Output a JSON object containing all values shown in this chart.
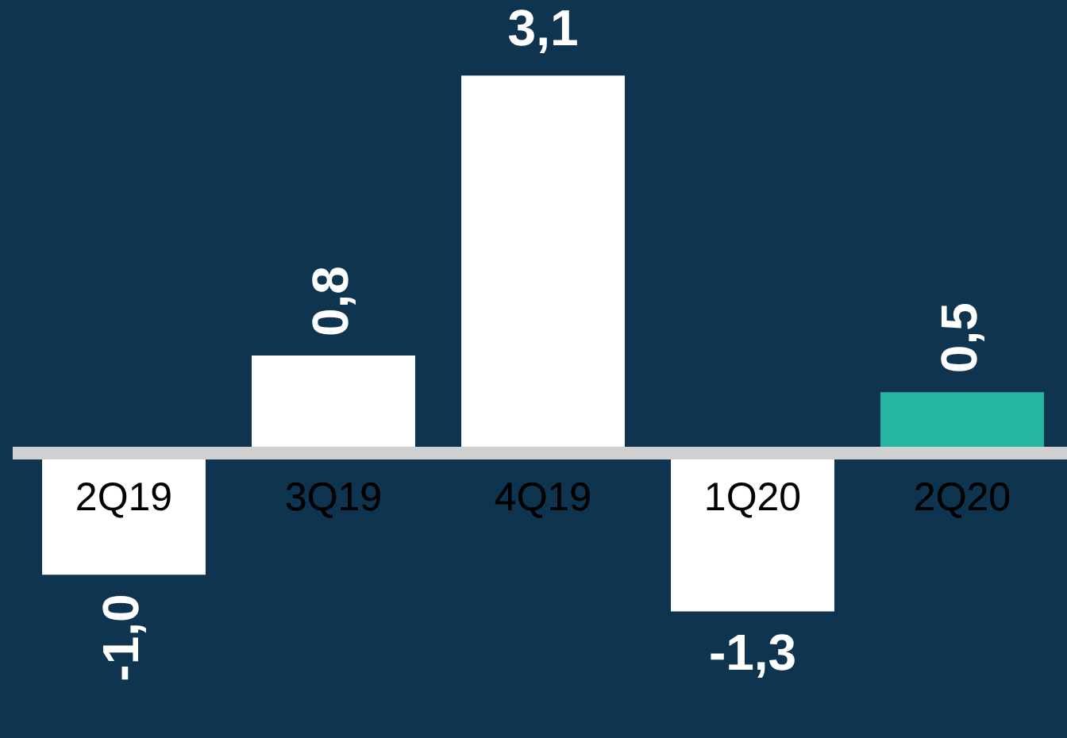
{
  "chart_data": {
    "type": "bar",
    "categories": [
      "2Q19",
      "3Q19",
      "4Q19",
      "1Q20",
      "2Q20"
    ],
    "values": [
      -1.0,
      0.8,
      3.1,
      -1.3,
      0.5
    ],
    "colors": [
      "#ffffff",
      "#ffffff",
      "#ffffff",
      "#ffffff",
      "#26b5a0"
    ],
    "value_labels": [
      "-1,0",
      "0,8",
      "3,1",
      "-1,3",
      "0,5"
    ],
    "grid": false,
    "legend": false
  }
}
